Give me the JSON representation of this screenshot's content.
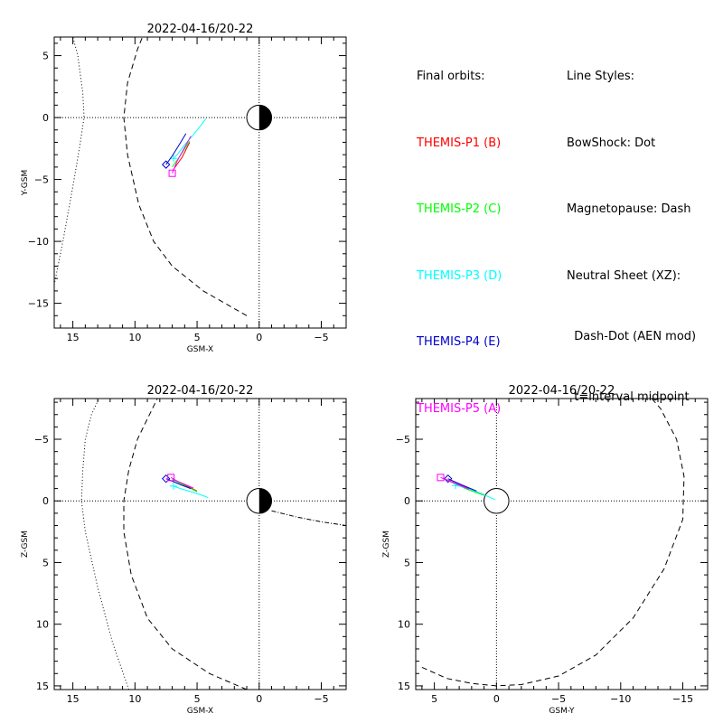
{
  "chart_data": [
    {
      "type": "scatter",
      "panel": "xy",
      "title": "2022-04-16/20-22",
      "xlabel": "GSM-X",
      "ylabel": "Y-GSM",
      "xlim": [
        16.5,
        -7
      ],
      "ylim": [
        6.5,
        -17
      ],
      "xticks": [
        15,
        10,
        5,
        0,
        -5
      ],
      "yticks": [
        -15,
        -10,
        -5,
        0,
        5
      ],
      "bowshock": {
        "x": [
          17.5,
          16.6,
          15.8,
          14.9,
          14.4,
          14.1,
          14.2,
          14.6,
          15.0
        ],
        "y": [
          -18,
          -14,
          -10,
          -5,
          -2,
          0,
          2,
          5,
          6.5
        ]
      },
      "magnetopause": {
        "x": [
          1.0,
          4.5,
          7.0,
          8.5,
          9.7,
          10.6,
          10.9,
          10.6,
          9.8,
          9.4
        ],
        "y": [
          -16,
          -14,
          -12,
          -10,
          -7,
          -3,
          0,
          2.8,
          5.5,
          6.5
        ]
      },
      "series": [
        {
          "name": "THEMIS-P1 (B)",
          "color": "#ff0000",
          "x": [
            6.9,
            6.2,
            5.6
          ],
          "y": [
            -4.2,
            -3.2,
            -2.0
          ],
          "marker": "none"
        },
        {
          "name": "THEMIS-P2 (C)",
          "color": "#00ff00",
          "x": [
            7.0,
            6.3,
            5.6
          ],
          "y": [
            -4.0,
            -3.0,
            -1.9
          ],
          "marker": "none"
        },
        {
          "name": "THEMIS-P3 (D)",
          "color": "#00ffff",
          "x": [
            6.9,
            6.6,
            6.0,
            5.3,
            4.6,
            4.3
          ],
          "y": [
            -3.3,
            -3.0,
            -2.2,
            -1.4,
            -0.5,
            -0.1
          ],
          "marker": "plus"
        },
        {
          "name": "THEMIS-P4 (E)",
          "color": "#0000cc",
          "x": [
            7.5,
            7.0,
            6.5,
            5.9
          ],
          "y": [
            -3.8,
            -3.1,
            -2.3,
            -1.3
          ],
          "marker": "diamond"
        },
        {
          "name": "THEMIS-P5 (A)",
          "color": "#ff00ff",
          "x": [
            7.0,
            6.6,
            6.1,
            5.5
          ],
          "y": [
            -4.5,
            -3.5,
            -2.6,
            -1.5
          ],
          "marker": "square"
        }
      ]
    },
    {
      "type": "scatter",
      "panel": "xz",
      "title": "2022-04-16/20-22",
      "xlabel": "GSM-X",
      "ylabel": "Z-GSM",
      "xlim": [
        16.5,
        -7
      ],
      "ylim": [
        -8.3,
        15.3
      ],
      "xticks": [
        15,
        10,
        5,
        0,
        -5
      ],
      "yticks": [
        -5,
        0,
        5,
        10,
        15
      ],
      "bowshock": {
        "x": [
          10.5,
          11.8,
          13.0,
          14.0,
          14.3,
          14.2,
          14.0,
          13.5,
          12.9
        ],
        "y": [
          15.3,
          11.5,
          7.0,
          2.5,
          0.0,
          -2.5,
          -5.0,
          -7.0,
          -8.3
        ]
      },
      "magnetopause": {
        "x": [
          1.0,
          4.0,
          7.0,
          9.0,
          10.3,
          10.9,
          10.9,
          10.5,
          9.8,
          8.2
        ],
        "y": [
          15.3,
          14.0,
          12.0,
          9.5,
          6.0,
          2.5,
          0.0,
          -2.5,
          -5.0,
          -8.3
        ]
      },
      "neutral_sheet": {
        "x": [
          -1.0,
          -3.0,
          -5.0,
          -7.0
        ],
        "y": [
          0.8,
          1.3,
          1.7,
          2.0
        ]
      },
      "series": [
        {
          "name": "THEMIS-P1 (B)",
          "color": "#ff0000",
          "x": [
            7.0,
            6.0,
            5.0
          ],
          "y": [
            -1.8,
            -1.3,
            -0.8
          ],
          "marker": "none"
        },
        {
          "name": "THEMIS-P2 (C)",
          "color": "#00ff00",
          "x": [
            7.0,
            6.0,
            5.0
          ],
          "y": [
            -1.75,
            -1.25,
            -0.75
          ],
          "marker": "none"
        },
        {
          "name": "THEMIS-P3 (D)",
          "color": "#00ffff",
          "x": [
            6.9,
            6.5,
            6.0,
            5.0,
            4.3,
            4.1
          ],
          "y": [
            -1.2,
            -1.05,
            -0.9,
            -0.6,
            -0.35,
            -0.25
          ],
          "marker": "plus"
        },
        {
          "name": "THEMIS-P4 (E)",
          "color": "#0000cc",
          "x": [
            7.5,
            7.0,
            6.3,
            5.5
          ],
          "y": [
            -1.8,
            -1.6,
            -1.3,
            -1.0
          ],
          "marker": "diamond"
        },
        {
          "name": "THEMIS-P5 (A)",
          "color": "#ff00ff",
          "x": [
            7.1,
            6.6,
            6.0,
            5.3
          ],
          "y": [
            -1.9,
            -1.6,
            -1.35,
            -1.05
          ],
          "marker": "square"
        }
      ]
    },
    {
      "type": "scatter",
      "panel": "yz",
      "title": "2022-04-16/20-22",
      "xlabel": "GSM-Y",
      "ylabel": "Z-GSM",
      "xlim": [
        6.5,
        -17
      ],
      "ylim": [
        -8.3,
        15.3
      ],
      "xticks": [
        5,
        0,
        -5,
        -10,
        -15
      ],
      "yticks": [
        -5,
        0,
        5,
        10,
        15
      ],
      "magnetopause": {
        "x": [
          6.0,
          4.0,
          2.0,
          0.0,
          -2.0,
          -5.0,
          -8.0,
          -11.0,
          -13.5,
          -15.0,
          -15.1,
          -14.5,
          -13.2,
          -12.5
        ],
        "y": [
          13.5,
          14.4,
          14.8,
          15.0,
          14.9,
          14.2,
          12.5,
          9.5,
          5.5,
          1.5,
          -2.0,
          -5.0,
          -7.5,
          -8.3
        ]
      },
      "series": [
        {
          "name": "THEMIS-P1 (B)",
          "color": "#ff0000",
          "x": [
            4.2,
            2.5,
            1.0
          ],
          "y": [
            -1.8,
            -1.1,
            -0.5
          ],
          "marker": "none"
        },
        {
          "name": "THEMIS-P2 (C)",
          "color": "#00ff00",
          "x": [
            4.0,
            2.5,
            1.0
          ],
          "y": [
            -1.7,
            -1.0,
            -0.45
          ],
          "marker": "none"
        },
        {
          "name": "THEMIS-P3 (D)",
          "color": "#00ffff",
          "x": [
            3.3,
            3.0,
            2.0,
            1.0,
            0.1
          ],
          "y": [
            -1.25,
            -1.2,
            -0.9,
            -0.5,
            -0.1
          ],
          "marker": "plus"
        },
        {
          "name": "THEMIS-P4 (E)",
          "color": "#0000cc",
          "x": [
            3.9,
            2.8,
            1.6
          ],
          "y": [
            -1.8,
            -1.3,
            -0.8
          ],
          "marker": "diamond"
        },
        {
          "name": "THEMIS-P5 (A)",
          "color": "#ff00ff",
          "x": [
            4.5,
            3.4,
            2.2
          ],
          "y": [
            -1.9,
            -1.45,
            -0.95
          ],
          "marker": "square"
        }
      ]
    }
  ],
  "legend": {
    "heading": "Final orbits:",
    "entries": [
      {
        "label": "THEMIS-P1 (B)",
        "color": "#ff0000"
      },
      {
        "label": "THEMIS-P2 (C)",
        "color": "#00ff00"
      },
      {
        "label": "THEMIS-P3 (D)",
        "color": "#00ffff"
      },
      {
        "label": "THEMIS-P4 (E)",
        "color": "#0000cc"
      },
      {
        "label": "THEMIS-P5 (A)",
        "color": "#ff00ff"
      }
    ]
  },
  "line_styles": {
    "heading": "Line Styles:",
    "lines": [
      "BowShock: Dot",
      "Magnetopause: Dash",
      "Neutral Sheet (XZ):",
      "  Dash-Dot (AEN mod)",
      "  t=interval midpoint"
    ]
  }
}
